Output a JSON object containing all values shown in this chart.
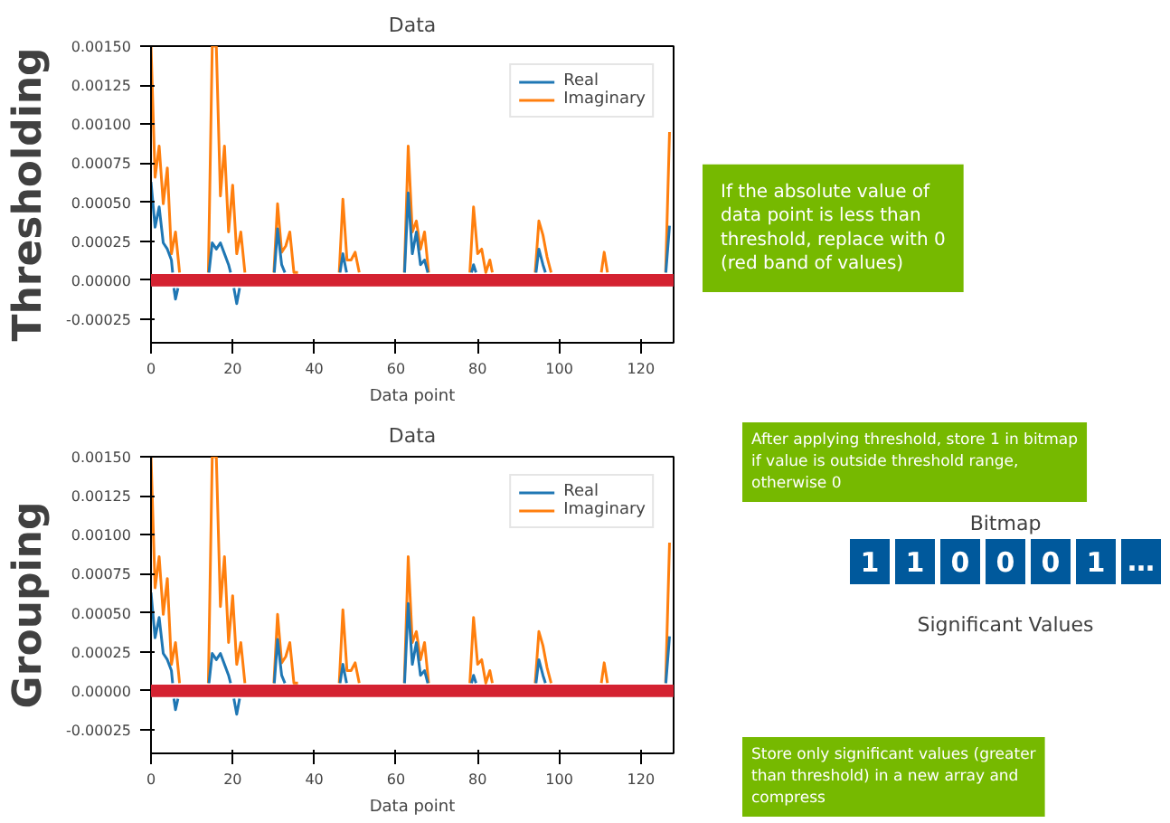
{
  "chart_data": [
    {
      "type": "line",
      "title": "Data",
      "xlabel": "Data point",
      "ylabel": "Thresholding",
      "series": [
        {
          "name": "Real",
          "color": "#1f77b4",
          "x": [
            0,
            1,
            2,
            3,
            4,
            5,
            5.3,
            5.45,
            5.6,
            6,
            6.6,
            10,
            14.2,
            15,
            16,
            17,
            18,
            19,
            19.5,
            20,
            20.3,
            21,
            21.7,
            26,
            30.2,
            31,
            32,
            32.8,
            40,
            46.3,
            47,
            47.9,
            55,
            62.1,
            63,
            64,
            65,
            66,
            67,
            67.8,
            72,
            78.5,
            79,
            79.6,
            88,
            94.3,
            95,
            96,
            96.6,
            110,
            126.1,
            127
          ],
          "values": [
            0.00063,
            0.00034,
            0.00047,
            0.00024,
            0.0002,
            0.00013,
            5e-05,
            null,
            -5e-05,
            -0.00012,
            -5e-05,
            null,
            5e-05,
            0.00024,
            0.0002,
            0.00024,
            0.00017,
            0.0001,
            5e-05,
            null,
            -5e-05,
            -0.00015,
            -5e-05,
            null,
            5e-05,
            0.00033,
            0.0001,
            5e-05,
            null,
            5e-05,
            0.00017,
            5e-05,
            null,
            5e-05,
            0.00056,
            0.00017,
            0.00031,
            0.0001,
            0.00013,
            5e-05,
            null,
            5e-05,
            0.0001,
            5e-05,
            null,
            5e-05,
            0.0002,
            0.0001,
            5e-05,
            null,
            5e-05,
            0.00035
          ]
        },
        {
          "name": "Imaginary",
          "color": "#ff7f0e",
          "x": [
            0,
            1,
            2,
            3,
            4,
            5,
            6,
            7,
            10,
            14.05,
            15,
            16,
            17,
            18,
            19,
            20,
            21,
            22,
            23,
            26,
            30.1,
            31,
            32,
            33,
            34,
            35,
            36,
            40,
            46.1,
            47,
            48,
            49,
            50,
            51,
            55,
            62.05,
            63,
            64,
            65,
            66,
            67,
            68,
            72,
            78.1,
            79,
            80,
            81,
            82,
            83,
            83.6,
            88,
            94.1,
            95,
            96,
            97,
            98,
            104,
            110.3,
            111,
            111.8,
            118,
            126.05,
            127
          ],
          "values": [
            0.0015,
            0.00066,
            0.00086,
            0.00049,
            0.00072,
            0.00017,
            0.00031,
            5e-05,
            null,
            5e-05,
            0.0015,
            0.0015,
            0.00054,
            0.00086,
            0.00031,
            0.00061,
            0.00017,
            0.00031,
            5e-05,
            null,
            5e-05,
            0.00049,
            0.00018,
            0.00022,
            0.00031,
            5e-05,
            5e-05,
            null,
            5e-05,
            0.00052,
            0.00013,
            0.00013,
            0.00018,
            5e-05,
            null,
            5e-05,
            0.00086,
            0.00031,
            0.00038,
            0.0002,
            0.00031,
            5e-05,
            null,
            5e-05,
            0.00047,
            0.00017,
            0.0002,
            5e-05,
            0.00013,
            5e-05,
            null,
            5e-05,
            0.00038,
            0.00029,
            0.00015,
            5e-05,
            null,
            5e-05,
            0.00018,
            5e-05,
            null,
            5e-05,
            0.00095
          ]
        }
      ],
      "xlim": [
        0,
        128
      ],
      "xticks": [
        0,
        20,
        40,
        60,
        80,
        100,
        120
      ],
      "ylim": [
        -0.0004,
        0.0015
      ],
      "yticks": [
        {
          "value": -0.00025,
          "label": "-0.00025"
        },
        {
          "value": 0,
          "label": "0.00000"
        },
        {
          "value": 0.00025,
          "label": "0.00025"
        },
        {
          "value": 0.0005,
          "label": "0.00050"
        },
        {
          "value": 0.00075,
          "label": "0.00075"
        },
        {
          "value": 0.001,
          "label": "0.00100"
        },
        {
          "value": 0.00125,
          "label": "0.00125"
        },
        {
          "value": 0.0015,
          "label": "0.00150"
        }
      ],
      "bands": [
        {
          "axis": "y",
          "from": -4e-05,
          "to": 4e-05,
          "color": "#d42231"
        }
      ],
      "legend": "top right",
      "grid": false,
      "annotations": [
        "If the absolute value of data point is less than threshold, replace with 0 (red band of values)"
      ]
    },
    {
      "type": "line",
      "title": "Data",
      "xlabel": "Data point",
      "ylabel": "Grouping",
      "series": [
        {
          "name": "Real",
          "color": "#1f77b4",
          "x": [
            0,
            1,
            2,
            3,
            4,
            5,
            5.3,
            5.45,
            5.6,
            6,
            6.6,
            10,
            14.2,
            15,
            16,
            17,
            18,
            19,
            19.5,
            20,
            20.3,
            21,
            21.7,
            26,
            30.2,
            31,
            32,
            32.8,
            40,
            46.3,
            47,
            47.9,
            55,
            62.1,
            63,
            64,
            65,
            66,
            67,
            67.8,
            72,
            78.5,
            79,
            79.6,
            88,
            94.3,
            95,
            96,
            96.6,
            110,
            126.1,
            127
          ],
          "values": [
            0.00063,
            0.00034,
            0.00047,
            0.00024,
            0.0002,
            0.00013,
            5e-05,
            null,
            -5e-05,
            -0.00012,
            -5e-05,
            null,
            5e-05,
            0.00024,
            0.0002,
            0.00024,
            0.00017,
            0.0001,
            5e-05,
            null,
            -5e-05,
            -0.00015,
            -5e-05,
            null,
            5e-05,
            0.00033,
            0.0001,
            5e-05,
            null,
            5e-05,
            0.00017,
            5e-05,
            null,
            5e-05,
            0.00056,
            0.00017,
            0.00031,
            0.0001,
            0.00013,
            5e-05,
            null,
            5e-05,
            0.0001,
            5e-05,
            null,
            5e-05,
            0.0002,
            0.0001,
            5e-05,
            null,
            5e-05,
            0.00035
          ]
        },
        {
          "name": "Imaginary",
          "color": "#ff7f0e",
          "x": [
            0,
            1,
            2,
            3,
            4,
            5,
            6,
            7,
            10,
            14.05,
            15,
            16,
            17,
            18,
            19,
            20,
            21,
            22,
            23,
            26,
            30.1,
            31,
            32,
            33,
            34,
            35,
            36,
            40,
            46.1,
            47,
            48,
            49,
            50,
            51,
            55,
            62.05,
            63,
            64,
            65,
            66,
            67,
            68,
            72,
            78.1,
            79,
            80,
            81,
            82,
            83,
            83.6,
            88,
            94.1,
            95,
            96,
            97,
            98,
            104,
            110.3,
            111,
            111.8,
            118,
            126.05,
            127
          ],
          "values": [
            0.0015,
            0.00066,
            0.00086,
            0.00049,
            0.00072,
            0.00017,
            0.00031,
            5e-05,
            null,
            5e-05,
            0.0015,
            0.0015,
            0.00054,
            0.00086,
            0.00031,
            0.00061,
            0.00017,
            0.00031,
            5e-05,
            null,
            5e-05,
            0.00049,
            0.00018,
            0.00022,
            0.00031,
            5e-05,
            5e-05,
            null,
            5e-05,
            0.00052,
            0.00013,
            0.00013,
            0.00018,
            5e-05,
            null,
            5e-05,
            0.00086,
            0.00031,
            0.00038,
            0.0002,
            0.00031,
            5e-05,
            null,
            5e-05,
            0.00047,
            0.00017,
            0.0002,
            5e-05,
            0.00013,
            5e-05,
            null,
            5e-05,
            0.00038,
            0.00029,
            0.00015,
            5e-05,
            null,
            5e-05,
            0.00018,
            5e-05,
            null,
            5e-05,
            0.00095
          ]
        }
      ],
      "xlim": [
        0,
        128
      ],
      "xticks": [
        0,
        20,
        40,
        60,
        80,
        100,
        120
      ],
      "ylim": [
        -0.0004,
        0.0015
      ],
      "yticks": [
        {
          "value": -0.00025,
          "label": "-0.00025"
        },
        {
          "value": 0,
          "label": "0.00000"
        },
        {
          "value": 0.00025,
          "label": "0.00025"
        },
        {
          "value": 0.0005,
          "label": "0.00050"
        },
        {
          "value": 0.00075,
          "label": "0.00075"
        },
        {
          "value": 0.001,
          "label": "0.00100"
        },
        {
          "value": 0.00125,
          "label": "0.00125"
        },
        {
          "value": 0.0015,
          "label": "0.00150"
        }
      ],
      "bands": [
        {
          "axis": "y",
          "from": -4e-05,
          "to": 4e-05,
          "color": "#d42231"
        }
      ],
      "legend": "top right",
      "grid": false
    },
    {
      "type": "other",
      "title": "Bitmap",
      "categories": [
        "1",
        "1",
        "0",
        "0",
        "0",
        "1",
        "…"
      ],
      "color": "#00599c",
      "annotations": [
        "After applying threshold, store 1 in bitmap if value is outside threshold range, otherwise 0"
      ]
    },
    {
      "type": "other",
      "title": "Significant Values",
      "annotations": [
        "Store only significant values (greater than threshold) in a new array and compress"
      ]
    }
  ]
}
